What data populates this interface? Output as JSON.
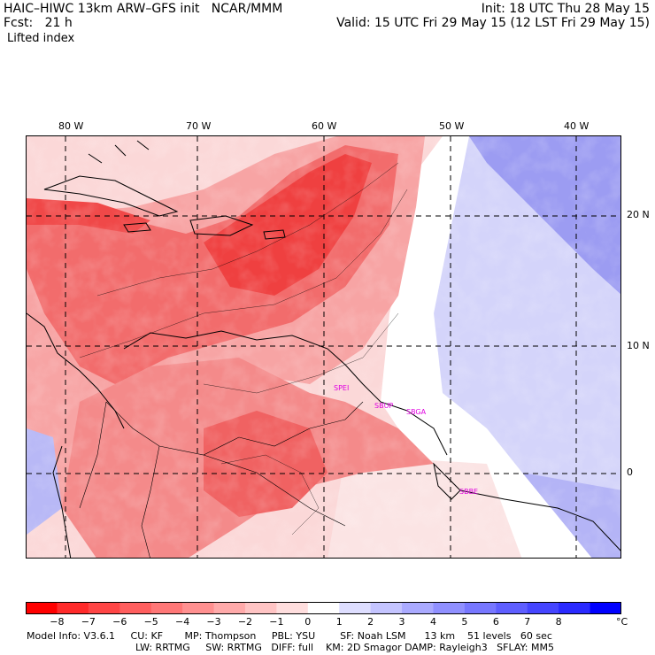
{
  "header": {
    "left_line1": "HAIC–HIWC 13km ARW–GFS init   NCAR/MMM",
    "left_line2": "Fcst:   21 h",
    "right_line1": "Init: 18 UTC Thu 28 May 15",
    "right_line2": "Valid: 15 UTC Fri 29 May 15 (12 LST Fri 29 May 15)",
    "field": "Lifted index"
  },
  "map": {
    "lon_labels": [
      "80 W",
      "70 W",
      "60 W",
      "50 W",
      "40 W"
    ],
    "lat_labels": [
      "20 N",
      "10 N",
      "0"
    ],
    "stations": [
      "SPEI",
      "SBUP",
      "SBGA",
      "SBBE"
    ],
    "colors": {
      "deep_red": "#f03030",
      "red": "#f56a6a",
      "light_red": "#f8a8a8",
      "pale": "#fbd8d8",
      "white": "#ffffff",
      "light_blue": "#c8c8f8",
      "blue": "#8888f0",
      "deep_blue": "#3030e0"
    }
  },
  "colorbar": {
    "labels": [
      "−8",
      "−7",
      "−6",
      "−5",
      "−4",
      "−3",
      "−2",
      "−1",
      "0",
      "1",
      "2",
      "3",
      "4",
      "5",
      "6",
      "7",
      "8"
    ],
    "unit": "°C",
    "colors": [
      "#ff0000",
      "#ff2a2a",
      "#ff4545",
      "#ff5e5e",
      "#ff7777",
      "#ff9090",
      "#ffaaaa",
      "#ffc4c4",
      "#ffdede",
      "#ffffff",
      "#dedeff",
      "#c4c4ff",
      "#aaaaff",
      "#9090ff",
      "#7777ff",
      "#5e5eff",
      "#4545ff",
      "#2a2aff",
      "#0000ff"
    ]
  },
  "footer": {
    "line1": "Model Info: V3.6.1     CU: KF       MP: Thompson     PBL: YSU        SF: Noah LSM      13 km    51 levels   60 sec",
    "line2": "LW: RRTMG     SW: RRTMG   DIFF: full    KM: 2D Smagor DAMP: Rayleigh3   SFLAY: MM5"
  }
}
